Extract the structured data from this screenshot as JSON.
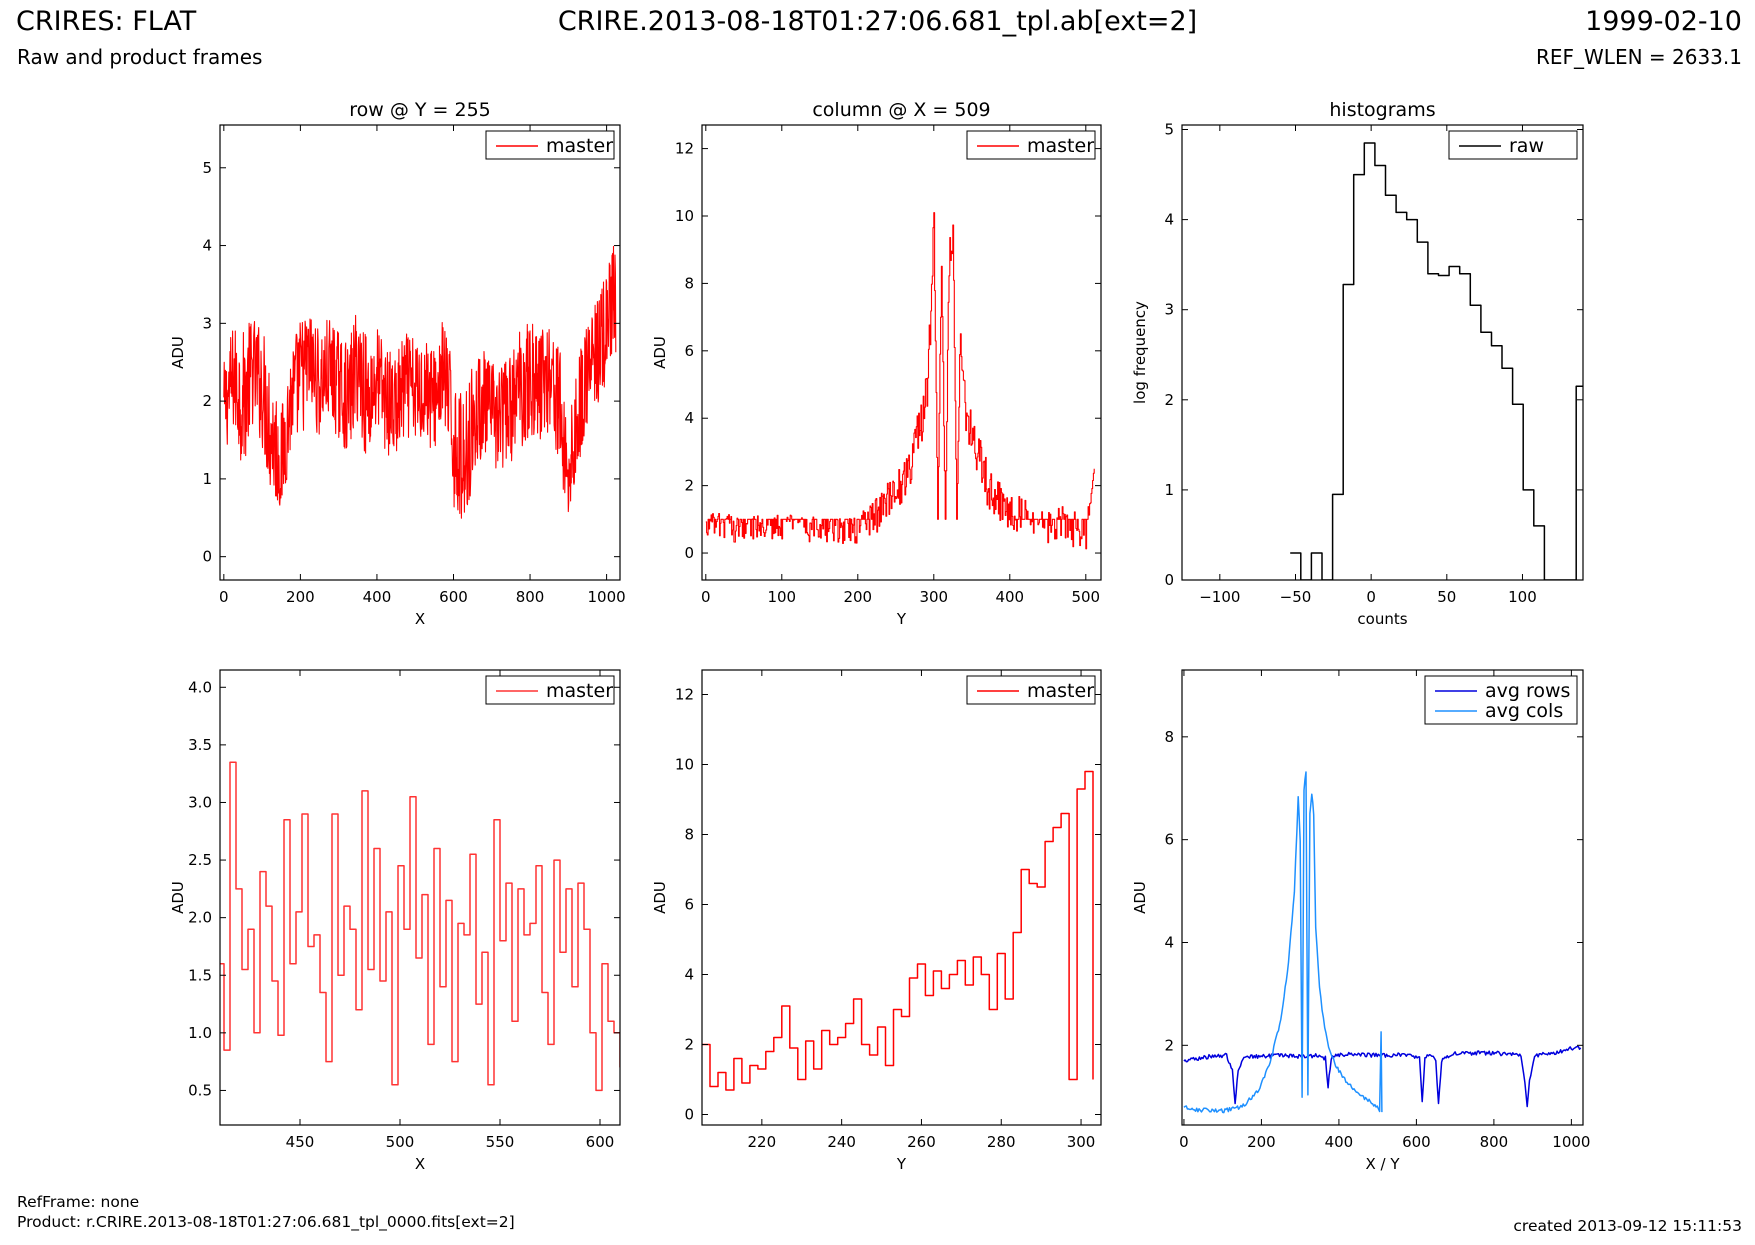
{
  "header": {
    "title_left": "CRIRES: FLAT",
    "subtitle_left": "Raw and product frames",
    "title_center": "CRIRE.2013-08-18T01:27:06.681_tpl.ab[ext=2]",
    "title_right": "1999-02-10",
    "subtitle_right": "REF_WLEN = 2633.1"
  },
  "footer": {
    "ref_frame": "RefFrame: none",
    "product": "Product: r.CRIRE.2013-08-18T01:27:06.681_tpl_0000.fits[ext=2]",
    "created": "created 2013-09-12 15:11:53"
  },
  "colors": {
    "master": "#ff0000",
    "raw": "#000000",
    "avg_rows": "#0000dd",
    "avg_cols": "#1e90ff"
  },
  "chart_data": [
    {
      "id": "row",
      "type": "line",
      "title": "row @ Y = 255",
      "xlabel": "X",
      "ylabel": "ADU",
      "xlim": [
        -10,
        1035
      ],
      "ylim": [
        -0.3,
        5.55
      ],
      "xticks": [
        0,
        200,
        400,
        600,
        800,
        1000
      ],
      "yticks": [
        0,
        1,
        2,
        3,
        4,
        5
      ],
      "legend_position": "top-right",
      "series": [
        {
          "name": "master",
          "color": "#ff0000",
          "step": false,
          "x": [
            0,
            25,
            50,
            75,
            100,
            125,
            150,
            175,
            200,
            225,
            250,
            275,
            300,
            325,
            350,
            375,
            400,
            425,
            450,
            475,
            500,
            525,
            550,
            575,
            600,
            625,
            650,
            675,
            700,
            725,
            750,
            775,
            800,
            825,
            850,
            875,
            900,
            925,
            950,
            975,
            1000,
            1024
          ],
          "y": [
            1.9,
            2.3,
            2.0,
            2.4,
            2.2,
            1.6,
            1.2,
            2.0,
            2.3,
            2.5,
            2.2,
            2.4,
            2.2,
            2.0,
            2.5,
            2.0,
            2.3,
            2.0,
            1.9,
            2.2,
            2.1,
            2.2,
            2.0,
            2.4,
            1.5,
            1.2,
            1.7,
            2.0,
            1.8,
            1.8,
            1.9,
            2.2,
            2.3,
            2.2,
            2.4,
            2.0,
            1.0,
            1.8,
            2.4,
            2.6,
            2.9,
            3.3
          ],
          "range": [
            1.2,
            1.4,
            1.8,
            1.4,
            1.6,
            1.8,
            1.4,
            1.4,
            1.6,
            1.4,
            1.4,
            1.4,
            1.4,
            1.4,
            1.6,
            1.6,
            1.4,
            1.4,
            1.4,
            1.4,
            1.4,
            1.4,
            1.4,
            1.4,
            1.8,
            1.6,
            1.6,
            1.4,
            1.4,
            1.4,
            1.4,
            1.6,
            1.6,
            1.4,
            1.6,
            1.6,
            1.4,
            1.4,
            1.4,
            1.4,
            1.6,
            1.6
          ]
        }
      ]
    },
    {
      "id": "column",
      "type": "line",
      "title": "column @ X = 509",
      "xlabel": "Y",
      "ylabel": "ADU",
      "xlim": [
        -5,
        520
      ],
      "ylim": [
        -0.8,
        12.7
      ],
      "xticks": [
        0,
        100,
        200,
        300,
        400,
        500
      ],
      "yticks": [
        0,
        2,
        4,
        6,
        8,
        10,
        12
      ],
      "legend_position": "top-right",
      "series": [
        {
          "name": "master",
          "color": "#ff0000",
          "step": true,
          "x": [
            0,
            20,
            40,
            60,
            80,
            100,
            120,
            140,
            160,
            180,
            200,
            210,
            220,
            230,
            240,
            250,
            260,
            270,
            280,
            290,
            295,
            300,
            305,
            310,
            315,
            320,
            325,
            330,
            335,
            340,
            350,
            360,
            370,
            380,
            390,
            400,
            420,
            440,
            460,
            480,
            500,
            511
          ],
          "y": [
            0.8,
            0.8,
            0.7,
            0.8,
            0.8,
            0.8,
            0.8,
            0.7,
            0.7,
            0.6,
            0.7,
            0.9,
            1.1,
            1.3,
            1.5,
            1.8,
            2.2,
            2.8,
            3.6,
            4.5,
            6.5,
            9.9,
            1.0,
            8.6,
            1.0,
            8.7,
            9.6,
            1.0,
            7.0,
            4.5,
            3.5,
            2.8,
            2.0,
            1.7,
            1.5,
            1.3,
            1.0,
            1.0,
            0.8,
            0.8,
            0.7,
            2.5
          ],
          "range": [
            0.8,
            0.8,
            0.8,
            0.8,
            0.8,
            0.8,
            0.8,
            0.8,
            0.8,
            0.8,
            0.8,
            1.0,
            1.2,
            1.2,
            1.2,
            1.2,
            1.4,
            1.4,
            1.4,
            1.6,
            1.4,
            1.0,
            0.0,
            1.4,
            0.0,
            1.4,
            1.2,
            0.0,
            1.4,
            1.4,
            1.4,
            1.4,
            1.4,
            1.2,
            1.2,
            1.2,
            1.2,
            1.2,
            1.2,
            1.2,
            1.2,
            0.0
          ]
        }
      ]
    },
    {
      "id": "histograms",
      "type": "line",
      "title": "histograms",
      "xlabel": "counts",
      "ylabel": "log frequency",
      "xlim": [
        -125,
        140
      ],
      "ylim": [
        0,
        5.05
      ],
      "xticks": [
        -100,
        -50,
        0,
        50,
        100
      ],
      "yticks": [
        0,
        1,
        2,
        3,
        4,
        5
      ],
      "legend_position": "top-right",
      "series": [
        {
          "name": "raw",
          "color": "#000000",
          "step": true,
          "x": [
            -53.5,
            -46.5,
            -39.5,
            -32.5,
            -25.5,
            -18.5,
            -11.5,
            -4.5,
            2.5,
            9.5,
            16.5,
            23.5,
            30.5,
            37.5,
            44.5,
            51.5,
            58.5,
            65.5,
            72.5,
            79.5,
            86.5,
            93.5,
            100.5,
            107.5,
            114.5,
            121.5,
            128.5,
            135.5,
            140
          ],
          "y": [
            0.3,
            0,
            0.3,
            0,
            0.95,
            3.28,
            4.5,
            4.85,
            4.6,
            4.27,
            4.08,
            4.0,
            3.75,
            3.4,
            3.38,
            3.48,
            3.4,
            3.05,
            2.75,
            2.6,
            2.35,
            1.95,
            1.0,
            0.6,
            0,
            0,
            0,
            2.15,
            2.15
          ]
        }
      ]
    },
    {
      "id": "row-zoom",
      "type": "line",
      "title": "",
      "xlabel": "X",
      "ylabel": "ADU",
      "xlim": [
        410,
        610
      ],
      "ylim": [
        0.2,
        4.15
      ],
      "xticks": [
        450,
        500,
        550,
        600
      ],
      "yticks": [
        0.5,
        1.0,
        1.5,
        2.0,
        2.5,
        3.0,
        3.5,
        4.0
      ],
      "legend_position": "top-right",
      "series": [
        {
          "name": "master",
          "color": "#ff3333",
          "step": true,
          "x": [
            410,
            412,
            415,
            418,
            421,
            424,
            427,
            430,
            433,
            436,
            439,
            442,
            445,
            448,
            451,
            454,
            457,
            460,
            463,
            466,
            469,
            472,
            475,
            478,
            481,
            484,
            487,
            490,
            493,
            496,
            499,
            502,
            505,
            508,
            511,
            514,
            517,
            520,
            523,
            526,
            529,
            532,
            535,
            538,
            541,
            544,
            547,
            550,
            553,
            556,
            559,
            562,
            565,
            568,
            571,
            574,
            577,
            580,
            583,
            586,
            589,
            592,
            595,
            598,
            601,
            604,
            607,
            610
          ],
          "y": [
            1.6,
            0.85,
            3.35,
            2.25,
            1.55,
            1.9,
            1.0,
            2.4,
            2.1,
            1.45,
            0.98,
            2.85,
            1.6,
            2.05,
            2.9,
            1.75,
            1.85,
            1.35,
            0.75,
            2.9,
            1.5,
            2.1,
            1.9,
            1.2,
            3.1,
            1.55,
            2.6,
            1.45,
            2.05,
            0.55,
            2.45,
            1.9,
            3.05,
            1.65,
            2.2,
            0.9,
            2.6,
            1.4,
            2.15,
            0.75,
            1.95,
            1.85,
            2.55,
            1.25,
            1.7,
            0.55,
            2.85,
            1.8,
            2.3,
            1.1,
            2.25,
            1.85,
            1.95,
            2.45,
            1.35,
            0.9,
            2.5,
            1.7,
            2.25,
            1.4,
            2.3,
            1.9,
            1.0,
            0.5,
            1.6,
            1.1,
            1.0,
            0.7
          ]
        }
      ]
    },
    {
      "id": "column-zoom",
      "type": "line",
      "title": "",
      "xlabel": "Y",
      "ylabel": "ADU",
      "xlim": [
        205,
        305
      ],
      "ylim": [
        -0.3,
        12.7
      ],
      "xticks": [
        220,
        240,
        260,
        280,
        300
      ],
      "yticks": [
        0,
        2,
        4,
        6,
        8,
        10,
        12
      ],
      "legend_position": "top-right",
      "series": [
        {
          "name": "master",
          "color": "#ff0000",
          "step": true,
          "x": [
            205,
            207,
            209,
            211,
            213,
            215,
            217,
            219,
            221,
            223,
            225,
            227,
            229,
            231,
            233,
            235,
            237,
            239,
            241,
            243,
            245,
            247,
            249,
            251,
            253,
            255,
            257,
            259,
            261,
            263,
            265,
            267,
            269,
            271,
            273,
            275,
            277,
            279,
            281,
            283,
            285,
            287,
            289,
            291,
            293,
            295,
            297,
            299,
            301,
            303
          ],
          "y": [
            2.0,
            0.8,
            1.2,
            0.7,
            1.6,
            0.9,
            1.4,
            1.3,
            1.8,
            2.2,
            3.1,
            1.9,
            1.0,
            2.1,
            1.3,
            2.4,
            2.0,
            2.2,
            2.6,
            3.3,
            2.0,
            1.7,
            2.5,
            1.4,
            3.0,
            2.8,
            3.9,
            4.3,
            3.4,
            4.1,
            3.6,
            4.0,
            4.4,
            3.7,
            4.5,
            4.0,
            3.0,
            4.6,
            3.3,
            5.2,
            7.0,
            6.6,
            6.5,
            7.8,
            8.2,
            8.6,
            1.0,
            9.3,
            9.8,
            1.0
          ]
        }
      ]
    },
    {
      "id": "averages",
      "type": "line",
      "title": "",
      "xlabel": "X / Y",
      "ylabel": "ADU",
      "xlim": [
        -5,
        1030
      ],
      "ylim": [
        0.45,
        9.3
      ],
      "xticks": [
        0,
        200,
        400,
        600,
        800,
        1000
      ],
      "yticks": [
        2,
        4,
        6,
        8
      ],
      "legend_position": "top-right",
      "series": [
        {
          "name": "avg rows",
          "color": "#0000dd",
          "step": false,
          "x": [
            0,
            40,
            80,
            110,
            125,
            132,
            140,
            155,
            190,
            250,
            300,
            340,
            365,
            372,
            380,
            395,
            450,
            520,
            580,
            608,
            615,
            622,
            640,
            650,
            657,
            665,
            700,
            800,
            870,
            880,
            886,
            892,
            905,
            960,
            1000,
            1024
          ],
          "y": [
            1.7,
            1.75,
            1.8,
            1.8,
            1.5,
            0.9,
            1.5,
            1.8,
            1.78,
            1.8,
            1.78,
            1.8,
            1.75,
            1.2,
            1.75,
            1.82,
            1.82,
            1.8,
            1.82,
            1.75,
            0.9,
            1.75,
            1.82,
            1.7,
            0.9,
            1.7,
            1.85,
            1.85,
            1.8,
            1.3,
            0.8,
            1.3,
            1.8,
            1.85,
            1.95,
            1.95
          ]
        },
        {
          "name": "avg cols",
          "color": "#1e90ff",
          "step": false,
          "x": [
            0,
            30,
            100,
            150,
            190,
            220,
            250,
            270,
            285,
            295,
            300,
            305,
            310,
            315,
            320,
            325,
            330,
            335,
            340,
            350,
            360,
            370,
            380,
            400,
            430,
            460,
            490,
            505,
            509,
            511
          ],
          "y": [
            0.8,
            0.75,
            0.72,
            0.8,
            1.1,
            1.6,
            2.5,
            3.6,
            5.0,
            6.8,
            6.0,
            1.0,
            7.0,
            7.3,
            1.0,
            6.5,
            6.9,
            6.5,
            4.3,
            3.1,
            2.5,
            2.1,
            1.8,
            1.5,
            1.2,
            1.0,
            0.85,
            0.75,
            2.3,
            0.7
          ]
        }
      ]
    }
  ]
}
